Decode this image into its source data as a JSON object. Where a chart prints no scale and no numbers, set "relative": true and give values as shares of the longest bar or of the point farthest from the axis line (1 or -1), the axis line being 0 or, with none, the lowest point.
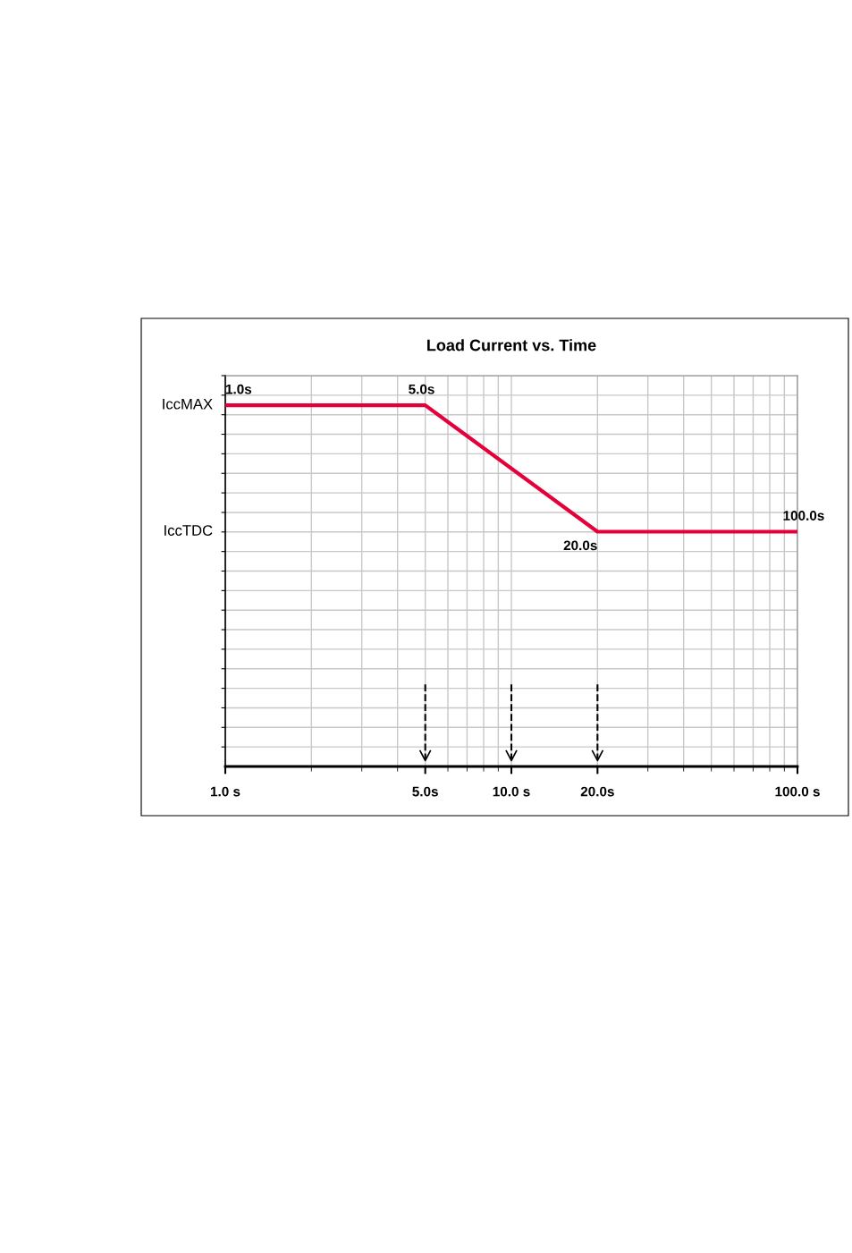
{
  "chart_data": {
    "type": "line",
    "title": "Load Current vs. Time",
    "relative": true,
    "log": "x",
    "series": [
      {
        "x": [
          1,
          5,
          20,
          100
        ],
        "values": [
          1,
          1,
          0.65,
          0.65
        ],
        "color": "#e4003a"
      }
    ],
    "xlim": [
      1,
      100
    ],
    "xticks": [
      {
        "value": 1,
        "label": "1.0 s"
      },
      {
        "value": 5,
        "label": "5.0s"
      },
      {
        "value": 10,
        "label": "10.0 s"
      },
      {
        "value": 20,
        "label": "20.0s"
      },
      {
        "value": 100,
        "label": "100.0 s"
      }
    ],
    "grid": true,
    "marker": "none",
    "line_style": "solid",
    "ref_lines": [
      {
        "axis": "x",
        "value": 5,
        "color": "#000000",
        "line_style": "dashed"
      },
      {
        "axis": "x",
        "value": 10,
        "color": "#000000",
        "line_style": "dashed"
      },
      {
        "axis": "x",
        "value": 20,
        "color": "#000000",
        "line_style": "dashed"
      }
    ],
    "annotations": [
      {
        "text": "IccMAX",
        "x": 1,
        "y": 1
      },
      "IccTDC",
      {
        "text": "1.0s",
        "x": 1,
        "y": 1
      },
      {
        "text": "5.0s",
        "x": 5,
        "y": 1
      },
      {
        "text": "20.0s",
        "x": 20,
        "y": 0.65
      },
      {
        "text": "100.0s",
        "x": 100,
        "y": 0.65
      }
    ]
  }
}
